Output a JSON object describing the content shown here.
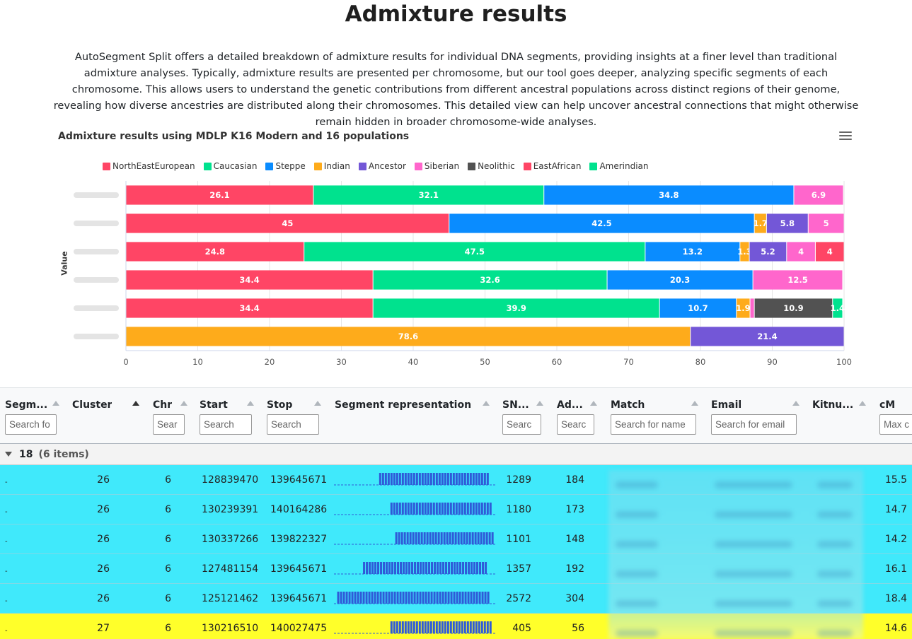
{
  "page": {
    "title": "Admixture results",
    "intro": "AutoSegment Split offers a detailed breakdown of admixture results for individual DNA segments, providing insights at a finer level than traditional admixture analyses. Typically, admixture results are presented per chromosome, but our tool goes deeper, analyzing specific segments of each chromosome. This allows users to understand the genetic contributions from different ancestral populations across distinct regions of their genome, revealing how diverse ancestries are distributed along their chromosomes. This detailed view can help uncover ancestral connections that might otherwise remain hidden in broader chromosome-wide analyses."
  },
  "chart_data": {
    "type": "bar",
    "orientation": "horizontal",
    "stacked": true,
    "title": "Admixture results using MDLP K16 Modern and 16 populations",
    "ylabel": "Value",
    "xlim": [
      0,
      100
    ],
    "xticks": [
      0,
      10,
      20,
      30,
      40,
      50,
      60,
      70,
      80,
      90,
      100
    ],
    "legend_position": "top-left",
    "series": [
      {
        "name": "NorthEastEuropean",
        "color": "#ff4565",
        "values": [
          26.1,
          45,
          24.8,
          34.4,
          34.4,
          0
        ]
      },
      {
        "name": "Caucasian",
        "color": "#00e28e",
        "values": [
          32.1,
          0,
          47.5,
          32.6,
          39.9,
          0
        ]
      },
      {
        "name": "Steppe",
        "color": "#0a8cff",
        "values": [
          34.8,
          42.5,
          13.2,
          20.3,
          10.7,
          0
        ]
      },
      {
        "name": "Indian",
        "color": "#feab1b",
        "values": [
          0,
          1.7,
          1.3,
          0,
          1.9,
          78.6
        ]
      },
      {
        "name": "Ancestor",
        "color": "#7357d7",
        "values": [
          0,
          5.8,
          5.2,
          0,
          0,
          21.4
        ]
      },
      {
        "name": "Siberian",
        "color": "#ff66cc",
        "values": [
          6.9,
          5,
          4,
          12.5,
          0.6,
          0
        ]
      },
      {
        "name": "Neolithic",
        "color": "#525252",
        "values": [
          0,
          0,
          0,
          0,
          10.9,
          0
        ]
      },
      {
        "name": "EastAfrican",
        "color": "#ff4565",
        "values": [
          0,
          0,
          4,
          0,
          0,
          0
        ]
      },
      {
        "name": "Amerindian",
        "color": "#00e28e",
        "values": [
          0,
          0,
          0,
          0,
          1.4,
          0
        ]
      }
    ],
    "data_labels": [
      [
        "26.1",
        "32.1",
        "34.8",
        "",
        "",
        "6.9",
        "",
        "",
        ""
      ],
      [
        "45",
        "",
        "42.5",
        "1.7",
        "5.8",
        "5",
        "",
        "",
        ""
      ],
      [
        "24.8",
        "47.5",
        "13.2",
        "1.3",
        "5.2",
        "4",
        "",
        "4",
        ""
      ],
      [
        "34.4",
        "32.6",
        "20.3",
        "",
        "",
        "12.5",
        "",
        "",
        ""
      ],
      [
        "34.4",
        "39.9",
        "10.7",
        "1.9",
        "",
        "",
        "10.9",
        "",
        "1.4"
      ],
      [
        "",
        "",
        "",
        "78.6",
        "21.4",
        "",
        "",
        "",
        ""
      ]
    ]
  },
  "table": {
    "columns": [
      {
        "key": "segment",
        "label": "Segm...",
        "placeholder": "Search fo"
      },
      {
        "key": "cluster",
        "label": "Cluster",
        "placeholder": ""
      },
      {
        "key": "chr",
        "label": "Chr",
        "placeholder": "Sear"
      },
      {
        "key": "start",
        "label": "Start",
        "placeholder": "Search"
      },
      {
        "key": "stop",
        "label": "Stop",
        "placeholder": "Search"
      },
      {
        "key": "segrep",
        "label": "Segment representation",
        "placeholder": ""
      },
      {
        "key": "snps",
        "label": "SN...",
        "placeholder": "Searc"
      },
      {
        "key": "ad",
        "label": "Ad...",
        "placeholder": "Searc"
      },
      {
        "key": "match",
        "label": "Match",
        "placeholder": "Search for name"
      },
      {
        "key": "email",
        "label": "Email",
        "placeholder": "Search for email"
      },
      {
        "key": "kitnum",
        "label": "Kitnu...",
        "placeholder": ""
      },
      {
        "key": "cm",
        "label": "cM",
        "placeholder": "Max c"
      }
    ],
    "group": {
      "name": "18",
      "count": "(6 items)"
    },
    "rows": [
      {
        "segment": "-",
        "cluster": "26",
        "chr": "6",
        "start": "128839470",
        "stop": "139645671",
        "snps": "1289",
        "ad": "184",
        "cm": "15.5",
        "highlight": "cyan",
        "bar_start": 0.28,
        "bar_end": 0.95
      },
      {
        "segment": "-",
        "cluster": "26",
        "chr": "6",
        "start": "130239391",
        "stop": "140164286",
        "snps": "1180",
        "ad": "173",
        "cm": "14.7",
        "highlight": "cyan",
        "bar_start": 0.35,
        "bar_end": 0.98
      },
      {
        "segment": "-",
        "cluster": "26",
        "chr": "6",
        "start": "130337266",
        "stop": "139822327",
        "snps": "1101",
        "ad": "148",
        "cm": "14.2",
        "highlight": "cyan",
        "bar_start": 0.38,
        "bar_end": 0.98
      },
      {
        "segment": "-",
        "cluster": "26",
        "chr": "6",
        "start": "127481154",
        "stop": "139645671",
        "snps": "1357",
        "ad": "192",
        "cm": "16.1",
        "highlight": "cyan",
        "bar_start": 0.18,
        "bar_end": 0.95
      },
      {
        "segment": "-",
        "cluster": "26",
        "chr": "6",
        "start": "125121462",
        "stop": "139645671",
        "snps": "2572",
        "ad": "304",
        "cm": "18.4",
        "highlight": "cyan",
        "bar_start": 0.02,
        "bar_end": 0.95
      },
      {
        "segment": "-",
        "cluster": "27",
        "chr": "6",
        "start": "130216510",
        "stop": "140027475",
        "snps": "405",
        "ad": "56",
        "cm": "14.6",
        "highlight": "yellow",
        "bar_start": 0.35,
        "bar_end": 0.98
      }
    ]
  },
  "colors": {
    "row_cyan": "#40e9fb",
    "row_yellow": "#ffff2a",
    "segment_bar": "#2f5bd8"
  },
  "icons": {
    "chart_menu": "hamburger-menu-icon",
    "sort": "sort-ascending-icon",
    "group_toggle": "caret-down-icon"
  }
}
